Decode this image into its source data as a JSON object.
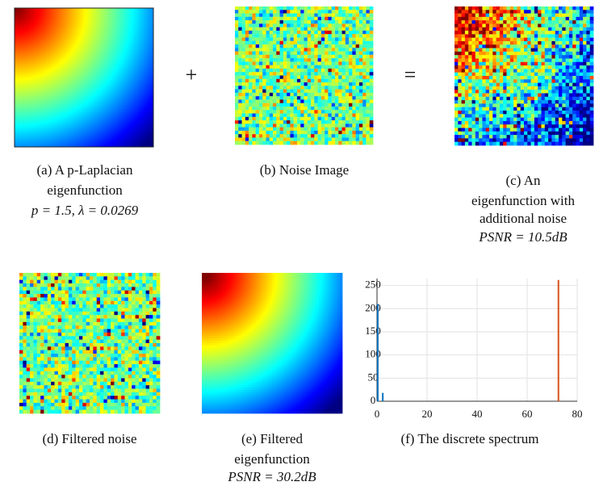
{
  "figure": {
    "operators": [
      "+",
      "="
    ],
    "panels": [
      {
        "caption": [
          "(a) A p-Laplacian",
          "eigenfunction",
          "p = 1.5, λ = 0.0269"
        ]
      },
      {
        "caption": [
          "(b) Noise Image"
        ]
      },
      {
        "caption": [
          "(c) An",
          "eigenfunction with",
          "additional noise",
          "PSNR = 10.5dB"
        ]
      },
      {
        "caption": [
          "(d) Filtered noise"
        ]
      },
      {
        "caption": [
          "(e) Filtered",
          "eigenfunction",
          "PSNR = 30.2dB"
        ]
      },
      {
        "caption": [
          "(f) The discrete spectrum"
        ]
      }
    ]
  },
  "chart_data": {
    "type": "bar",
    "xlim": [
      0,
      80
    ],
    "xticks": [
      0,
      20,
      40,
      60,
      80
    ],
    "ylim": [
      0,
      265
    ],
    "yticks": [
      0,
      50,
      100,
      150,
      200,
      250
    ],
    "grid": true,
    "series": [
      {
        "color": "#0072bd",
        "x": [
          0.3,
          2.3
        ],
        "values": [
          210,
          18
        ]
      },
      {
        "color": "#d95319",
        "x": [
          72.5
        ],
        "values": [
          262
        ]
      }
    ]
  }
}
